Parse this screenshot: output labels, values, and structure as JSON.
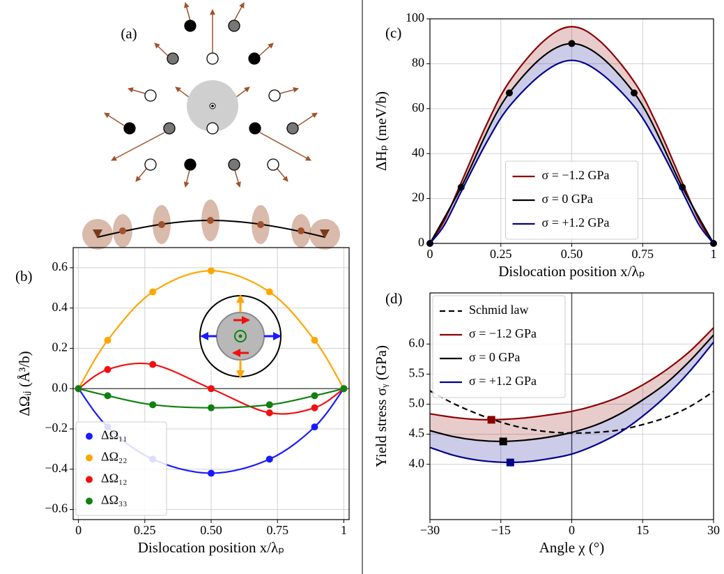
{
  "diagram": {
    "label": "(a)"
  },
  "chart_data": [
    {
      "type": "line",
      "label": "(b)",
      "xlabel": "Dislocation position x/λₚ",
      "ylabel": "ΔΩᵢⱼ (Å³/b)",
      "xlim": [
        -0.02,
        1.02
      ],
      "ylim": [
        -0.65,
        0.7
      ],
      "xticks": [
        0,
        0.25,
        {
          "value": 0.5,
          "label": "0.50"
        },
        0.75,
        1
      ],
      "yticks": [
        {
          "value": -0.6,
          "label": "−0.6"
        },
        {
          "value": -0.4,
          "label": "−0.4"
        },
        {
          "value": -0.2,
          "label": "−0.2"
        },
        {
          "value": 0,
          "label": "0.0"
        },
        0.2,
        0.4,
        0.6
      ],
      "grid": true,
      "hline": 0,
      "legend": "lower left",
      "series": [
        {
          "name": "ΔΩ₁₁",
          "color": "#1a1aff",
          "marker": "circle",
          "x": [
            0,
            0.11,
            0.28,
            0.5,
            0.72,
            0.89,
            1
          ],
          "values": [
            0,
            -0.19,
            -0.35,
            -0.42,
            -0.35,
            -0.19,
            0
          ]
        },
        {
          "name": "ΔΩ₂₂",
          "color": "#ffa500",
          "marker": "circle",
          "x": [
            0,
            0.11,
            0.28,
            0.5,
            0.72,
            0.89,
            1
          ],
          "values": [
            0,
            0.24,
            0.48,
            0.585,
            0.48,
            0.24,
            0
          ]
        },
        {
          "name": "ΔΩ₁₂",
          "color": "#f01010",
          "marker": "circle",
          "x": [
            0,
            0.11,
            0.28,
            0.5,
            0.72,
            0.89,
            1
          ],
          "values": [
            0,
            0.095,
            0.12,
            0,
            -0.12,
            -0.095,
            0
          ]
        },
        {
          "name": "ΔΩ₃₃",
          "color": "#108010",
          "marker": "circle",
          "x": [
            0,
            0.11,
            0.28,
            0.5,
            0.72,
            0.89,
            1
          ],
          "values": [
            0,
            -0.035,
            -0.08,
            -0.095,
            -0.08,
            -0.035,
            0
          ]
        }
      ]
    },
    {
      "type": "line",
      "label": "(c)",
      "xlabel": "Dislocation position x/λₚ",
      "ylabel": "ΔHₚ (meV/b)",
      "xlim": [
        0,
        1
      ],
      "ylim": [
        0,
        100
      ],
      "xticks": [
        0,
        0.25,
        {
          "value": 0.5,
          "label": "0.50"
        },
        0.75,
        1
      ],
      "yticks": [
        0,
        20,
        40,
        60,
        80,
        100
      ],
      "grid": true,
      "legend": "lower center",
      "series": [
        {
          "name": "σ = −1.2 GPa",
          "color": "#8b0000",
          "band": true,
          "x": [
            0,
            0.05,
            0.11,
            0.2,
            0.28,
            0.4,
            0.5,
            0.6,
            0.72,
            0.8,
            0.89,
            0.95,
            1
          ],
          "values": [
            0,
            10,
            27,
            53,
            72,
            90,
            96.5,
            90,
            72,
            53,
            27,
            10,
            0
          ]
        },
        {
          "name": "σ = 0 GPa",
          "color": "#000000",
          "band": true,
          "marker": "circle",
          "x": [
            0,
            0.11,
            0.28,
            0.5,
            0.72,
            0.89,
            1
          ],
          "values": [
            0,
            25,
            67,
            89,
            67,
            25,
            0
          ]
        },
        {
          "name": "σ = +1.2 GPa",
          "color": "#00008b",
          "band": true,
          "x": [
            0,
            0.05,
            0.11,
            0.2,
            0.28,
            0.4,
            0.5,
            0.6,
            0.72,
            0.8,
            0.89,
            0.95,
            1
          ],
          "values": [
            0,
            8,
            23,
            45,
            61,
            76,
            81.5,
            76,
            61,
            45,
            23,
            8,
            0
          ]
        }
      ]
    },
    {
      "type": "line",
      "label": "(d)",
      "xlabel": "Angle χ (°)",
      "ylabel": "Yield stress σᵧ (GPa)",
      "xlim": [
        -30,
        30
      ],
      "ylim": [
        3.08,
        6.85
      ],
      "xticks": [
        {
          "value": -30,
          "label": "−30"
        },
        {
          "value": -15,
          "label": "−15"
        },
        0,
        15,
        30
      ],
      "yticks": [
        {
          "value": 4,
          "label": "4.0"
        },
        4.5,
        {
          "value": 5,
          "label": "5.0"
        },
        5.5,
        {
          "value": 6,
          "label": "6.0"
        }
      ],
      "grid": true,
      "vline": 0,
      "legend": "upper left",
      "series": [
        {
          "name": "Schmid law",
          "color": "#000000",
          "dash": true,
          "x": [
            -30,
            -25,
            -20,
            -15,
            -10,
            -5,
            0,
            5,
            10,
            15,
            20,
            25,
            30
          ],
          "values": [
            5.22,
            5.01,
            4.84,
            4.7,
            4.6,
            4.54,
            4.52,
            4.53,
            4.57,
            4.66,
            4.78,
            4.96,
            5.21
          ]
        },
        {
          "name": "σ = −1.2 GPa",
          "color": "#8b0000",
          "band": true,
          "x": [
            -30,
            -25,
            -20,
            -15,
            -10,
            -5,
            0,
            5,
            10,
            15,
            20,
            25,
            30
          ],
          "values": [
            4.84,
            4.78,
            4.745,
            4.745,
            4.77,
            4.82,
            4.88,
            4.98,
            5.12,
            5.32,
            5.57,
            5.88,
            6.27
          ],
          "min_point": {
            "x": -17,
            "y": 4.74
          }
        },
        {
          "name": "σ = 0 GPa",
          "color": "#000000",
          "band": true,
          "x": [
            -30,
            -25,
            -20,
            -15,
            -10,
            -5,
            0,
            5,
            10,
            15,
            20,
            25,
            30
          ],
          "values": [
            4.56,
            4.46,
            4.4,
            4.38,
            4.4,
            4.45,
            4.53,
            4.65,
            4.83,
            5.07,
            5.35,
            5.72,
            6.15
          ],
          "min_point": {
            "x": -14.5,
            "y": 4.38
          }
        },
        {
          "name": "σ = +1.2 GPa",
          "color": "#00008b",
          "band": true,
          "x": [
            -30,
            -25,
            -20,
            -15,
            -10,
            -5,
            0,
            5,
            10,
            15,
            20,
            25,
            30
          ],
          "values": [
            4.28,
            4.15,
            4.07,
            4.035,
            4.04,
            4.09,
            4.17,
            4.32,
            4.52,
            4.8,
            5.14,
            5.55,
            6.03
          ],
          "min_point": {
            "x": -13,
            "y": 4.03
          }
        }
      ]
    }
  ]
}
